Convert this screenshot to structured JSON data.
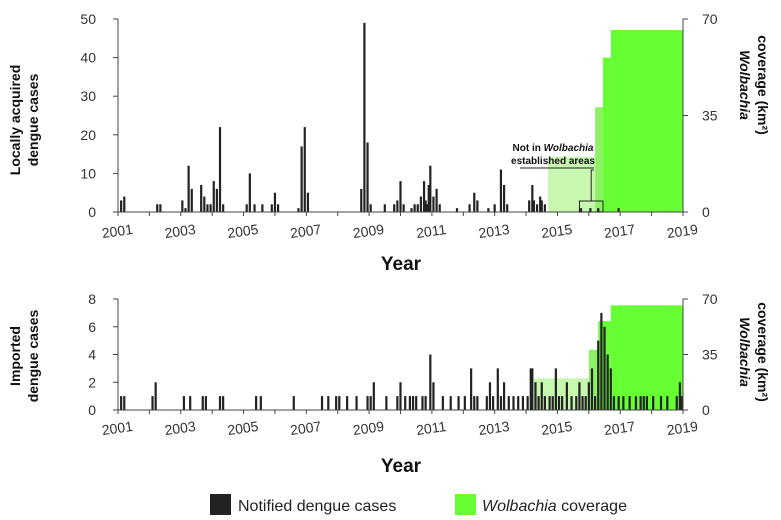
{
  "colors": {
    "cases": "#222222",
    "coverage": "#66ff33",
    "coverage_light": "#c8f7b0",
    "coverage_mid": "#8ef066",
    "axis": "#444444"
  },
  "legend": {
    "cases_label": "Notified dengue cases",
    "coverage_label_italic": "Wolbachia",
    "coverage_label_rest": " coverage"
  },
  "annotation": {
    "line1_prefix": "Not in ",
    "line1_italic": "Wolbachia",
    "line2": "established areas"
  },
  "chart_data": [
    {
      "type": "bar",
      "panel": "top",
      "ylabel_line1": "Locally acquired",
      "ylabel_line2": "dengue cases",
      "y2label_line1_italic": "Wolbachia",
      "y2label_line2": "coverage (km²)",
      "xlabel": "Year",
      "xlim": [
        2001,
        2019
      ],
      "ylim": [
        0,
        50
      ],
      "y2lim": [
        0,
        70
      ],
      "yticks": [
        0,
        10,
        20,
        30,
        40,
        50
      ],
      "y2ticks": [
        0,
        35,
        70
      ],
      "xticks": [
        "2001",
        "2003",
        "2005",
        "2007",
        "2009",
        "2011",
        "2013",
        "2015",
        "2017",
        "2019"
      ],
      "cases": [
        [
          2001.1,
          3
        ],
        [
          2001.2,
          4
        ],
        [
          2002.25,
          2
        ],
        [
          2002.35,
          2
        ],
        [
          2003.05,
          3
        ],
        [
          2003.15,
          1
        ],
        [
          2003.25,
          12
        ],
        [
          2003.35,
          6
        ],
        [
          2003.65,
          7
        ],
        [
          2003.75,
          4
        ],
        [
          2003.85,
          2
        ],
        [
          2003.95,
          2
        ],
        [
          2004.05,
          8
        ],
        [
          2004.15,
          6
        ],
        [
          2004.25,
          22
        ],
        [
          2004.35,
          2
        ],
        [
          2005.1,
          2
        ],
        [
          2005.2,
          10
        ],
        [
          2005.35,
          2
        ],
        [
          2005.6,
          2
        ],
        [
          2005.9,
          2
        ],
        [
          2006.0,
          5
        ],
        [
          2006.1,
          2
        ],
        [
          2006.75,
          1
        ],
        [
          2006.85,
          17
        ],
        [
          2006.95,
          22
        ],
        [
          2007.05,
          5
        ],
        [
          2008.75,
          6
        ],
        [
          2008.85,
          49
        ],
        [
          2008.95,
          18
        ],
        [
          2009.05,
          2
        ],
        [
          2009.5,
          2
        ],
        [
          2009.8,
          2
        ],
        [
          2009.9,
          3
        ],
        [
          2010.0,
          8
        ],
        [
          2010.1,
          2
        ],
        [
          2010.35,
          1
        ],
        [
          2010.45,
          2
        ],
        [
          2010.55,
          2
        ],
        [
          2010.65,
          4
        ],
        [
          2010.75,
          8
        ],
        [
          2010.8,
          3
        ],
        [
          2010.85,
          2
        ],
        [
          2010.9,
          7
        ],
        [
          2010.95,
          12
        ],
        [
          2011.05,
          4
        ],
        [
          2011.15,
          6
        ],
        [
          2011.25,
          2
        ],
        [
          2011.8,
          1
        ],
        [
          2012.2,
          2
        ],
        [
          2012.35,
          5
        ],
        [
          2012.45,
          3
        ],
        [
          2012.8,
          1
        ],
        [
          2013.0,
          2
        ],
        [
          2013.2,
          11
        ],
        [
          2013.3,
          7
        ],
        [
          2013.4,
          2
        ],
        [
          2014.1,
          3
        ],
        [
          2014.2,
          7
        ],
        [
          2014.25,
          3
        ],
        [
          2014.35,
          2
        ],
        [
          2014.45,
          4
        ],
        [
          2014.5,
          3
        ],
        [
          2014.6,
          2
        ],
        [
          2016.95,
          1
        ]
      ],
      "coverage": [
        {
          "x0": 2014.7,
          "x1": 2016.2,
          "value": 20,
          "shade": "light"
        },
        {
          "x0": 2016.2,
          "x1": 2016.45,
          "value": 38,
          "shade": "mid"
        },
        {
          "x0": 2016.45,
          "x1": 2016.7,
          "value": 56,
          "shade": "full"
        },
        {
          "x0": 2016.7,
          "x1": 2019.0,
          "value": 66,
          "shade": "full"
        }
      ],
      "outside_cases": [
        [
          2015.75,
          1
        ],
        [
          2016.05,
          1
        ],
        [
          2016.3,
          1
        ]
      ]
    },
    {
      "type": "bar",
      "panel": "bottom",
      "ylabel_line1": "Imported",
      "ylabel_line2": "dengue cases",
      "y2label_line1_italic": "Wolbachia",
      "y2label_line2": "coverage (km²)",
      "xlabel": "Year",
      "xlim": [
        2001,
        2019
      ],
      "ylim": [
        0,
        8
      ],
      "y2lim": [
        0,
        70
      ],
      "yticks": [
        0,
        2,
        4,
        6,
        8
      ],
      "y2ticks": [
        0,
        35,
        70
      ],
      "xticks": [
        "2001",
        "2003",
        "2005",
        "2007",
        "2009",
        "2011",
        "2013",
        "2015",
        "2017",
        "2019"
      ],
      "cases": [
        [
          2001.1,
          1
        ],
        [
          2001.2,
          1
        ],
        [
          2002.1,
          1
        ],
        [
          2002.2,
          2
        ],
        [
          2003.1,
          1
        ],
        [
          2003.3,
          1
        ],
        [
          2003.7,
          1
        ],
        [
          2003.8,
          1
        ],
        [
          2004.25,
          1
        ],
        [
          2004.35,
          1
        ],
        [
          2005.4,
          1
        ],
        [
          2005.55,
          1
        ],
        [
          2006.6,
          1
        ],
        [
          2007.5,
          1
        ],
        [
          2007.7,
          1
        ],
        [
          2007.95,
          1
        ],
        [
          2008.05,
          1
        ],
        [
          2008.3,
          1
        ],
        [
          2008.6,
          1
        ],
        [
          2008.95,
          1
        ],
        [
          2009.05,
          1
        ],
        [
          2009.15,
          2
        ],
        [
          2009.55,
          1
        ],
        [
          2009.9,
          1
        ],
        [
          2010.0,
          2
        ],
        [
          2010.15,
          1
        ],
        [
          2010.3,
          1
        ],
        [
          2010.4,
          1
        ],
        [
          2010.5,
          1
        ],
        [
          2010.7,
          1
        ],
        [
          2010.8,
          1
        ],
        [
          2010.95,
          4
        ],
        [
          2011.05,
          2
        ],
        [
          2011.35,
          1
        ],
        [
          2011.6,
          1
        ],
        [
          2011.85,
          1
        ],
        [
          2012.05,
          1
        ],
        [
          2012.25,
          3
        ],
        [
          2012.35,
          1
        ],
        [
          2012.45,
          1
        ],
        [
          2012.75,
          1
        ],
        [
          2012.85,
          2
        ],
        [
          2012.95,
          1
        ],
        [
          2013.1,
          3
        ],
        [
          2013.2,
          1
        ],
        [
          2013.3,
          2
        ],
        [
          2013.45,
          1
        ],
        [
          2013.6,
          1
        ],
        [
          2013.75,
          1
        ],
        [
          2013.9,
          1
        ],
        [
          2014.05,
          1
        ],
        [
          2014.15,
          3
        ],
        [
          2014.2,
          3
        ],
        [
          2014.3,
          2
        ],
        [
          2014.4,
          1
        ],
        [
          2014.5,
          2
        ],
        [
          2014.6,
          1
        ],
        [
          2014.75,
          1
        ],
        [
          2014.85,
          1
        ],
        [
          2014.95,
          3
        ],
        [
          2015.05,
          1
        ],
        [
          2015.15,
          1
        ],
        [
          2015.3,
          2
        ],
        [
          2015.45,
          1
        ],
        [
          2015.6,
          1
        ],
        [
          2015.7,
          2
        ],
        [
          2015.8,
          1
        ],
        [
          2015.9,
          1
        ],
        [
          2016.0,
          2
        ],
        [
          2016.1,
          3
        ],
        [
          2016.2,
          1
        ],
        [
          2016.3,
          5
        ],
        [
          2016.4,
          7
        ],
        [
          2016.5,
          6
        ],
        [
          2016.6,
          4
        ],
        [
          2016.7,
          3
        ],
        [
          2016.8,
          1
        ],
        [
          2016.95,
          1
        ],
        [
          2017.1,
          1
        ],
        [
          2017.3,
          1
        ],
        [
          2017.5,
          1
        ],
        [
          2017.65,
          1
        ],
        [
          2017.75,
          1
        ],
        [
          2017.85,
          1
        ],
        [
          2018.05,
          1
        ],
        [
          2018.3,
          1
        ],
        [
          2018.5,
          1
        ],
        [
          2018.8,
          1
        ],
        [
          2018.9,
          2
        ],
        [
          2018.95,
          1
        ]
      ],
      "coverage": [
        {
          "x0": 2014.25,
          "x1": 2016.0,
          "value": 20,
          "shade": "light"
        },
        {
          "x0": 2016.0,
          "x1": 2016.3,
          "value": 38,
          "shade": "mid"
        },
        {
          "x0": 2016.3,
          "x1": 2016.7,
          "value": 56,
          "shade": "full"
        },
        {
          "x0": 2016.7,
          "x1": 2019.0,
          "value": 66,
          "shade": "full"
        }
      ]
    }
  ]
}
